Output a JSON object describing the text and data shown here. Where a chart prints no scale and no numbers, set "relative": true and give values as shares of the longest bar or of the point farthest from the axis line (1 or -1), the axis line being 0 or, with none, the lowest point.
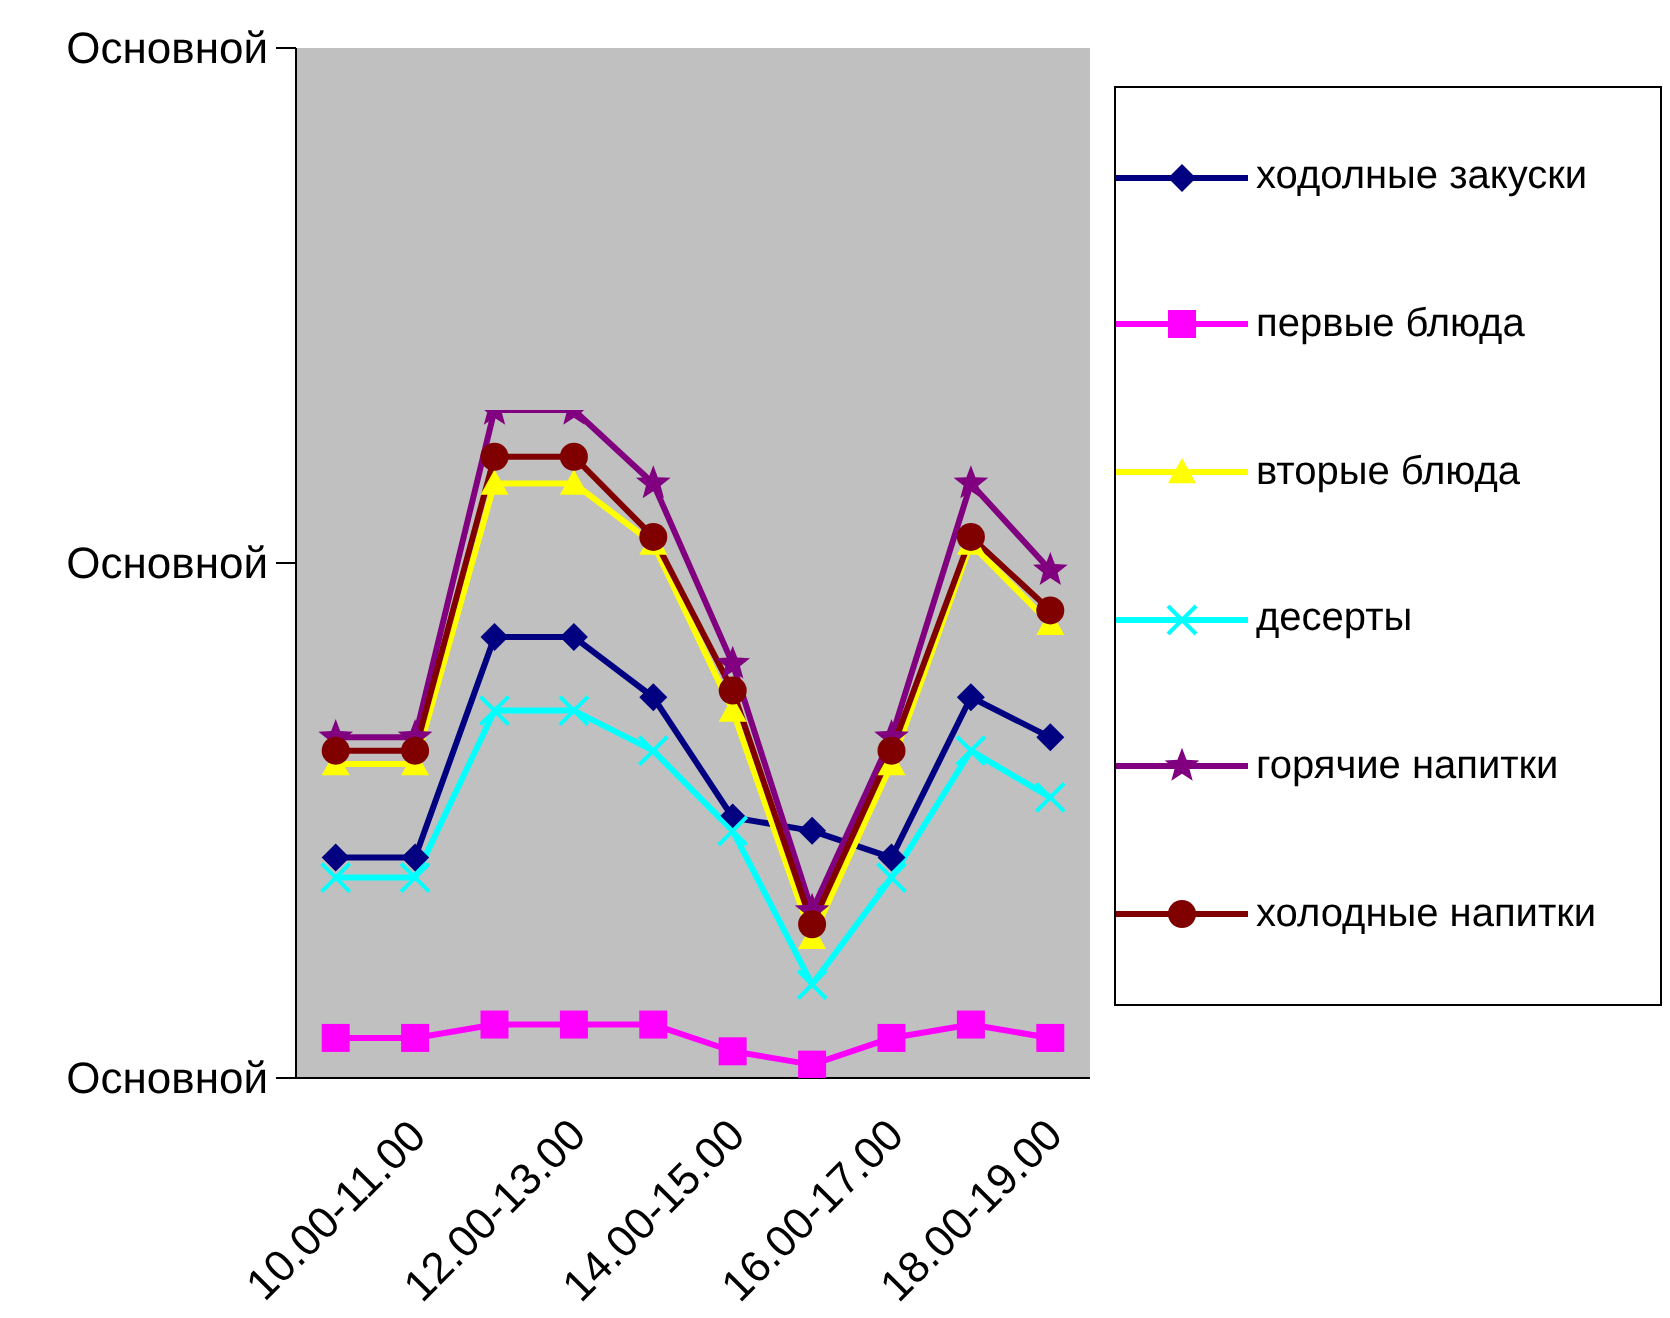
{
  "chart_data": {
    "type": "line",
    "relative": true,
    "categories": [
      "10.00-11.00",
      null,
      "12.00-13.00",
      null,
      "14.00-15.00",
      null,
      "16.00-17.00",
      null,
      "18.00-19.00",
      null
    ],
    "series": [
      {
        "name": "ходолные закуски",
        "color": "#000080",
        "marker": "diamond",
        "values": [
          0.33,
          0.33,
          0.66,
          0.66,
          0.57,
          0.39,
          0.37,
          0.33,
          0.57,
          0.51
        ]
      },
      {
        "name": "первые блюда",
        "color": "#ff00ff",
        "marker": "square",
        "values": [
          0.06,
          0.06,
          0.08,
          0.08,
          0.08,
          0.04,
          0.02,
          0.06,
          0.08,
          0.06
        ]
      },
      {
        "name": "вторые блюда",
        "color": "#ffff00",
        "marker": "triangle",
        "values": [
          0.47,
          0.47,
          0.89,
          0.89,
          0.8,
          0.55,
          0.21,
          0.47,
          0.8,
          0.68
        ]
      },
      {
        "name": "десерты",
        "color": "#00ffff",
        "marker": "cross",
        "values": [
          0.3,
          0.3,
          0.55,
          0.55,
          0.49,
          0.37,
          0.14,
          0.3,
          0.49,
          0.42
        ]
      },
      {
        "name": "горячие напитки",
        "color": "#800080",
        "marker": "star",
        "values": [
          0.51,
          0.51,
          1,
          1,
          0.89,
          0.62,
          0.25,
          0.51,
          0.89,
          0.76
        ]
      },
      {
        "name": "холодные напитки",
        "color": "#800000",
        "marker": "circle",
        "values": [
          0.49,
          0.49,
          0.93,
          0.93,
          0.81,
          0.58,
          0.23,
          0.49,
          0.81,
          0.7
        ]
      }
    ],
    "annotations": [
      "Основной",
      "Основной",
      "Основной"
    ],
    "legend": "right"
  }
}
